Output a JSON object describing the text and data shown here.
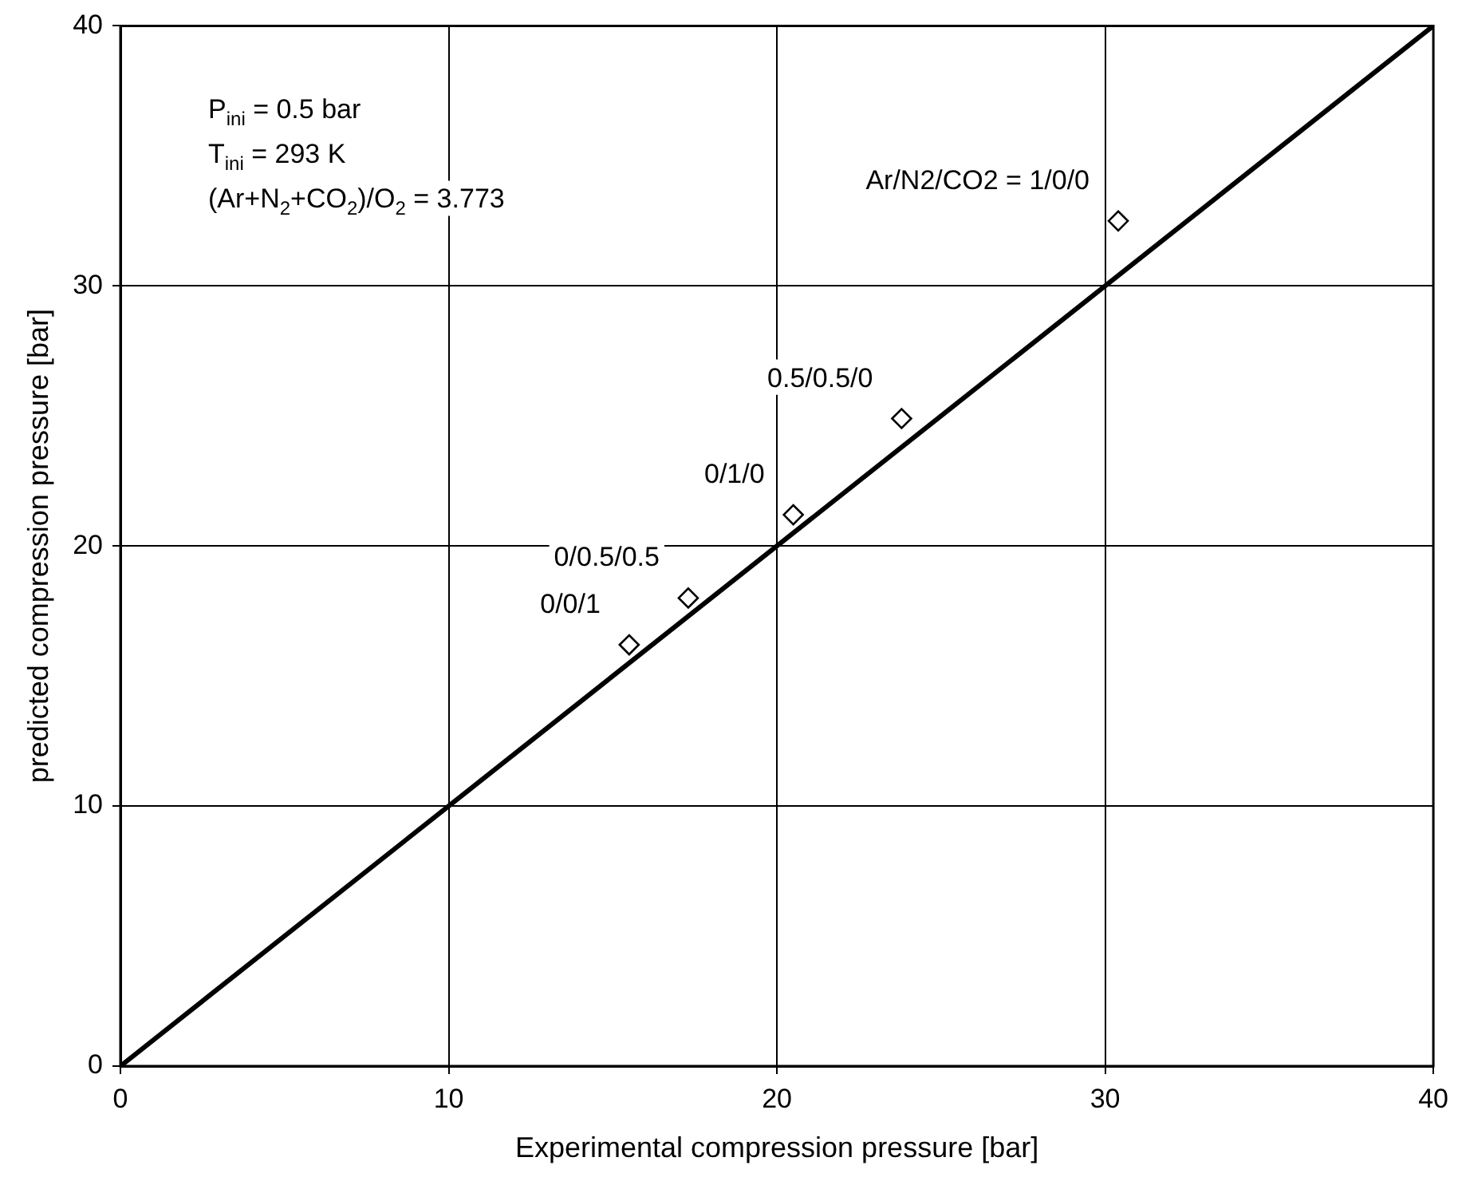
{
  "chart_data": {
    "type": "scatter",
    "xlabel": "Experimental compression pressure [bar]",
    "ylabel": "predicted compression pressure [bar]",
    "series": [
      {
        "color": "#000000",
        "marker": "diamond",
        "x": [
          15.5,
          17.3,
          20.5,
          23.8,
          30.4
        ],
        "values": [
          16.2,
          18.0,
          21.2,
          24.9,
          32.5
        ]
      },
      {
        "type": "line",
        "color": "#000000",
        "marker": "none",
        "line_style": "solid",
        "x": [
          0,
          40
        ],
        "values": [
          0,
          40
        ]
      }
    ],
    "xlim": [
      0,
      40
    ],
    "ylim": [
      0,
      40
    ],
    "xticks": [
      0,
      10,
      20,
      30,
      40
    ],
    "yticks": [
      0,
      10,
      20,
      30,
      40
    ],
    "grid": true,
    "legend": false,
    "annotations": [
      "P$_{ini}$ = 0.5 bar",
      "T$_{ini}$ = 293 K",
      "(Ar+N$_{2}$+CO$_{2}$)/O$_{2}$ = 3.773",
      {
        "text": "0/0/1",
        "x": 15.5,
        "y": 16.2
      },
      {
        "text": "0/0.5/0.5",
        "x": 17.3,
        "y": 18.0
      },
      {
        "text": "0/1/0",
        "x": 20.5,
        "y": 21.2
      },
      {
        "text": "0.5/0.5/0",
        "x": 23.8,
        "y": 24.9
      },
      {
        "text": "Ar/N2/CO2 = 1/0/0",
        "x": 30.4,
        "y": 32.5
      }
    ]
  }
}
